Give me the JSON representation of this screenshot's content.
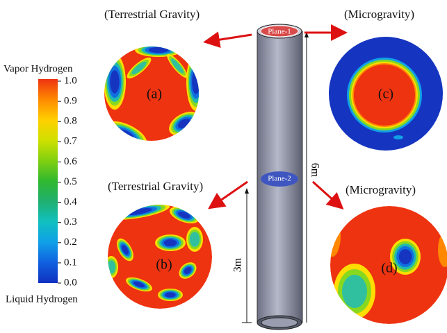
{
  "colorbar": {
    "top_label": "Vapor Hydrogen",
    "bottom_label": "Liquid Hydrogen",
    "ticks": [
      "1.0",
      "0.9",
      "0.8",
      "0.7",
      "0.6",
      "0.5",
      "0.4",
      "0.3",
      "0.2",
      "0.1",
      "0.0"
    ]
  },
  "panels": [
    {
      "title": "(Terrestrial Gravity)",
      "label": "(a)"
    },
    {
      "title": "(Microgravity)",
      "label": "(c)"
    },
    {
      "title": "(Terrestrial Gravity)",
      "label": "(b)"
    },
    {
      "title": "(Microgravity)",
      "label": "(d)"
    }
  ],
  "pipe": {
    "plane_1": "Plane-1",
    "plane_2": "Plane-2",
    "height_full": "6m",
    "height_half": "3m"
  }
}
